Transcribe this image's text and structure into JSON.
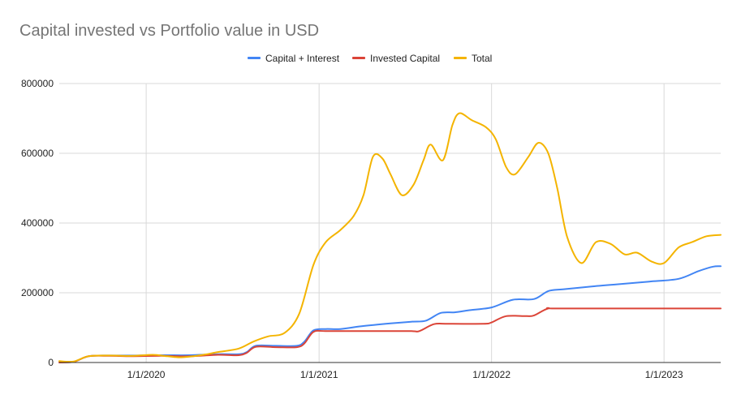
{
  "chart_data": {
    "type": "line",
    "title": "Capital invested vs Portfolio value in USD",
    "xlabel": "",
    "ylabel": "",
    "x_range": [
      "2019-07-01",
      "2023-05-01"
    ],
    "ylim": [
      0,
      800000
    ],
    "y_ticks": [
      0,
      200000,
      400000,
      600000,
      800000
    ],
    "y_tick_labels": [
      "0",
      "200000",
      "400000",
      "600000",
      "800000"
    ],
    "x_ticks": [
      "2020-01-01",
      "2021-01-01",
      "2022-01-01",
      "2023-01-01"
    ],
    "x_tick_labels": [
      "1/1/2020",
      "1/1/2021",
      "1/1/2022",
      "1/1/2023"
    ],
    "grid": true,
    "legend_position": "top",
    "series": [
      {
        "name": "Capital + Interest",
        "color": "#4285f4",
        "points": [
          [
            "2019-07-01",
            0
          ],
          [
            "2019-08-01",
            2000
          ],
          [
            "2019-09-01",
            18000
          ],
          [
            "2019-10-15",
            20000
          ],
          [
            "2019-12-01",
            20000
          ],
          [
            "2020-02-01",
            21000
          ],
          [
            "2020-04-01",
            21000
          ],
          [
            "2020-06-01",
            24000
          ],
          [
            "2020-07-15",
            24000
          ],
          [
            "2020-08-01",
            30000
          ],
          [
            "2020-08-20",
            48000
          ],
          [
            "2020-10-01",
            48000
          ],
          [
            "2020-11-15",
            48000
          ],
          [
            "2020-12-01",
            60000
          ],
          [
            "2020-12-20",
            92000
          ],
          [
            "2021-01-15",
            96000
          ],
          [
            "2021-02-15",
            96000
          ],
          [
            "2021-04-01",
            104000
          ],
          [
            "2021-06-01",
            112000
          ],
          [
            "2021-07-15",
            117000
          ],
          [
            "2021-08-15",
            120000
          ],
          [
            "2021-09-15",
            142000
          ],
          [
            "2021-10-15",
            144000
          ],
          [
            "2021-11-15",
            150000
          ],
          [
            "2022-01-01",
            158000
          ],
          [
            "2022-02-15",
            180000
          ],
          [
            "2022-04-01",
            182000
          ],
          [
            "2022-05-01",
            205000
          ],
          [
            "2022-06-01",
            210000
          ],
          [
            "2022-08-01",
            218000
          ],
          [
            "2022-10-01",
            225000
          ],
          [
            "2022-12-01",
            232000
          ],
          [
            "2023-02-01",
            240000
          ],
          [
            "2023-03-15",
            262000
          ],
          [
            "2023-04-15",
            275000
          ],
          [
            "2023-05-01",
            276000
          ]
        ]
      },
      {
        "name": "Invested Capital",
        "color": "#db4437",
        "points": [
          [
            "2019-07-01",
            0
          ],
          [
            "2019-08-01",
            2000
          ],
          [
            "2019-09-01",
            18000
          ],
          [
            "2019-10-15",
            19000
          ],
          [
            "2019-12-01",
            18000
          ],
          [
            "2020-02-01",
            19000
          ],
          [
            "2020-04-01",
            18000
          ],
          [
            "2020-06-01",
            22000
          ],
          [
            "2020-07-15",
            21000
          ],
          [
            "2020-08-01",
            28000
          ],
          [
            "2020-08-20",
            45000
          ],
          [
            "2020-10-01",
            44000
          ],
          [
            "2020-11-15",
            44000
          ],
          [
            "2020-12-01",
            55000
          ],
          [
            "2020-12-20",
            88000
          ],
          [
            "2021-01-15",
            90000
          ],
          [
            "2021-03-01",
            90000
          ],
          [
            "2021-05-01",
            90000
          ],
          [
            "2021-07-15",
            90000
          ],
          [
            "2021-08-01",
            90000
          ],
          [
            "2021-09-01",
            110000
          ],
          [
            "2021-10-01",
            111000
          ],
          [
            "2021-12-15",
            111000
          ],
          [
            "2022-01-01",
            115000
          ],
          [
            "2022-02-01",
            133000
          ],
          [
            "2022-03-15",
            133000
          ],
          [
            "2022-04-01",
            135000
          ],
          [
            "2022-05-01",
            155000
          ],
          [
            "2022-06-01",
            155000
          ],
          [
            "2023-05-01",
            155000
          ]
        ]
      },
      {
        "name": "Total",
        "color": "#f4b400",
        "points": [
          [
            "2019-07-01",
            4000
          ],
          [
            "2019-08-01",
            3000
          ],
          [
            "2019-09-01",
            18000
          ],
          [
            "2019-10-15",
            20000
          ],
          [
            "2019-12-01",
            19000
          ],
          [
            "2020-01-15",
            22000
          ],
          [
            "2020-02-15",
            18000
          ],
          [
            "2020-03-15",
            15000
          ],
          [
            "2020-05-01",
            22000
          ],
          [
            "2020-06-01",
            30000
          ],
          [
            "2020-07-15",
            40000
          ],
          [
            "2020-08-15",
            60000
          ],
          [
            "2020-09-15",
            75000
          ],
          [
            "2020-10-20",
            85000
          ],
          [
            "2020-11-20",
            140000
          ],
          [
            "2020-12-20",
            280000
          ],
          [
            "2021-01-15",
            345000
          ],
          [
            "2021-02-15",
            380000
          ],
          [
            "2021-03-15",
            420000
          ],
          [
            "2021-04-05",
            480000
          ],
          [
            "2021-04-25",
            590000
          ],
          [
            "2021-05-15",
            585000
          ],
          [
            "2021-06-01",
            540000
          ],
          [
            "2021-06-25",
            480000
          ],
          [
            "2021-07-20",
            510000
          ],
          [
            "2021-08-10",
            580000
          ],
          [
            "2021-08-25",
            625000
          ],
          [
            "2021-09-20",
            580000
          ],
          [
            "2021-10-10",
            680000
          ],
          [
            "2021-10-25",
            715000
          ],
          [
            "2021-11-20",
            695000
          ],
          [
            "2021-12-20",
            675000
          ],
          [
            "2022-01-10",
            640000
          ],
          [
            "2022-02-01",
            560000
          ],
          [
            "2022-02-20",
            540000
          ],
          [
            "2022-03-20",
            590000
          ],
          [
            "2022-04-10",
            630000
          ],
          [
            "2022-05-01",
            600000
          ],
          [
            "2022-05-20",
            500000
          ],
          [
            "2022-06-10",
            360000
          ],
          [
            "2022-07-10",
            285000
          ],
          [
            "2022-08-10",
            345000
          ],
          [
            "2022-09-10",
            340000
          ],
          [
            "2022-10-10",
            310000
          ],
          [
            "2022-11-05",
            315000
          ],
          [
            "2022-12-05",
            290000
          ],
          [
            "2023-01-01",
            285000
          ],
          [
            "2023-02-01",
            330000
          ],
          [
            "2023-03-01",
            345000
          ],
          [
            "2023-04-01",
            362000
          ],
          [
            "2023-05-01",
            366000
          ]
        ]
      }
    ]
  }
}
